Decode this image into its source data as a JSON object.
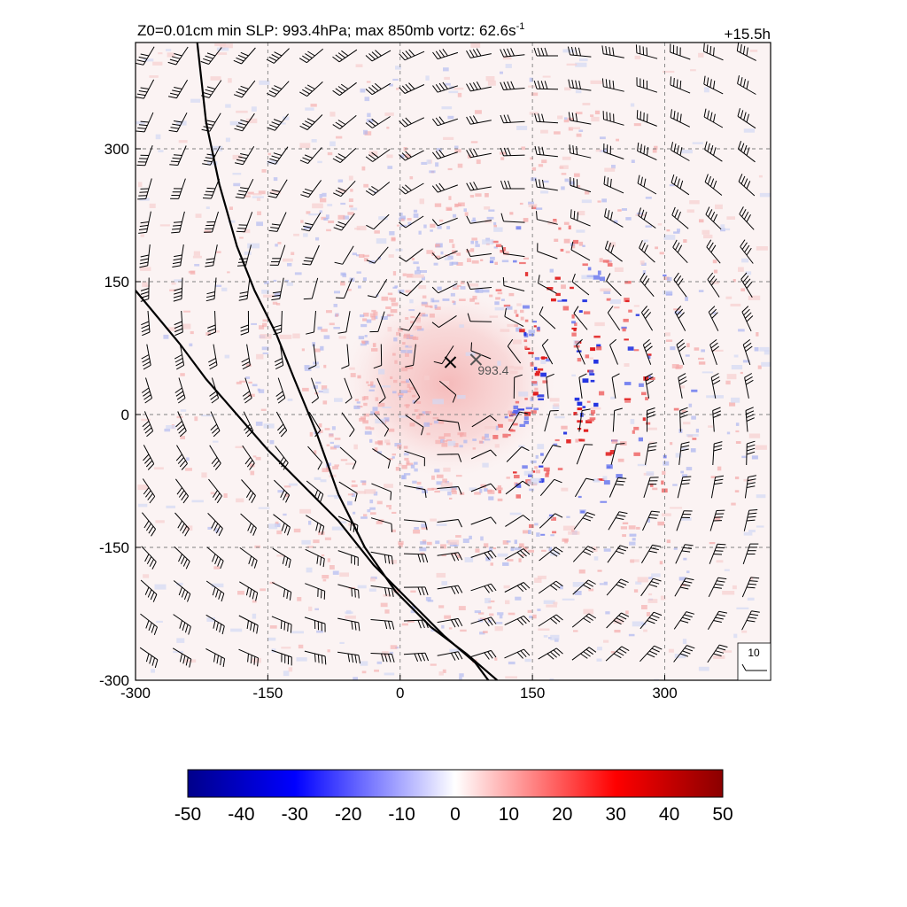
{
  "header": {
    "title_main": "Z0=0.01cm  min SLP: 993.4hPa; max 850mb vortz:  62.6s",
    "title_sup": "-1",
    "time_label": "+15.5h"
  },
  "chart_data": {
    "type": "heatmap",
    "description_visible": false,
    "xlim": [
      -300,
      420
    ],
    "ylim": [
      -300,
      420
    ],
    "x_ticks": [
      -300,
      -150,
      0,
      150,
      300
    ],
    "y_ticks": [
      -300,
      -150,
      0,
      150,
      300
    ],
    "x_tick_labels": [
      "-300",
      "-150",
      "0",
      "150",
      "300"
    ],
    "y_tick_labels": [
      "-300",
      "-150",
      "0",
      "150",
      "300"
    ],
    "grid": true,
    "center_marks": [
      {
        "x": 57,
        "y": 59,
        "symbol": "x",
        "color": "#000000"
      },
      {
        "x": 86,
        "y": 62,
        "symbol": "x",
        "color": "#555555",
        "label": "993.4"
      }
    ],
    "coast_lines": [
      {
        "name": "line-a",
        "points": [
          [
            -230,
            420
          ],
          [
            -220,
            330
          ],
          [
            -205,
            260
          ],
          [
            -185,
            190
          ],
          [
            -165,
            140
          ],
          [
            -140,
            90
          ],
          [
            -120,
            40
          ],
          [
            -95,
            -20
          ],
          [
            -70,
            -90
          ],
          [
            -40,
            -150
          ],
          [
            -5,
            -200
          ],
          [
            35,
            -240
          ],
          [
            75,
            -270
          ],
          [
            110,
            -300
          ]
        ]
      },
      {
        "name": "line-b",
        "points": [
          [
            -300,
            140
          ],
          [
            -275,
            110
          ],
          [
            -250,
            80
          ],
          [
            -220,
            40
          ],
          [
            -185,
            0
          ],
          [
            -150,
            -40
          ],
          [
            -110,
            -80
          ],
          [
            -70,
            -120
          ],
          [
            -30,
            -170
          ],
          [
            10,
            -210
          ],
          [
            50,
            -250
          ],
          [
            85,
            -280
          ],
          [
            100,
            -300
          ]
        ]
      }
    ],
    "vortex": {
      "center": [
        75,
        45
      ]
    },
    "reference_vector": {
      "label": "10"
    },
    "colorbar": {
      "ticks": [
        -50,
        -40,
        -30,
        -20,
        -10,
        0,
        10,
        20,
        30,
        40,
        50
      ],
      "tick_labels": [
        "-50",
        "-40",
        "-30",
        "-20",
        "-10",
        "0",
        "10",
        "20",
        "30",
        "40",
        "50"
      ],
      "colors": [
        "#00008b",
        "#0000ff",
        "#ffffff",
        "#ff0000",
        "#8b0000"
      ]
    }
  }
}
